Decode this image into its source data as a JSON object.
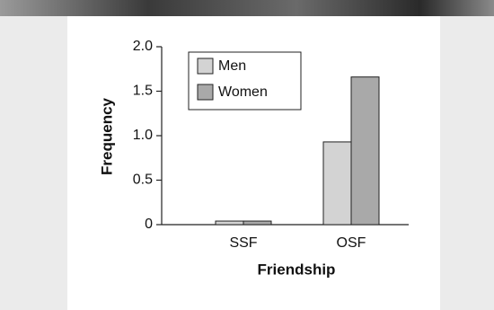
{
  "chart_data": {
    "type": "bar",
    "x_label": "Friendship",
    "y_label": "Frequency",
    "categories": [
      "SSF",
      "OSF"
    ],
    "series": [
      {
        "name": "Men",
        "color": "#d3d3d3",
        "values": [
          0.04,
          0.93
        ]
      },
      {
        "name": "Women",
        "color": "#a9a9a9",
        "values": [
          0.04,
          1.66
        ]
      }
    ],
    "ylim": [
      0,
      2.0
    ],
    "yticks": [
      0,
      0.5,
      {
        "value": 1.0,
        "label": "1.0"
      },
      1.5,
      {
        "value": 2.0,
        "label": "2.0"
      }
    ],
    "legend": "upper left"
  }
}
